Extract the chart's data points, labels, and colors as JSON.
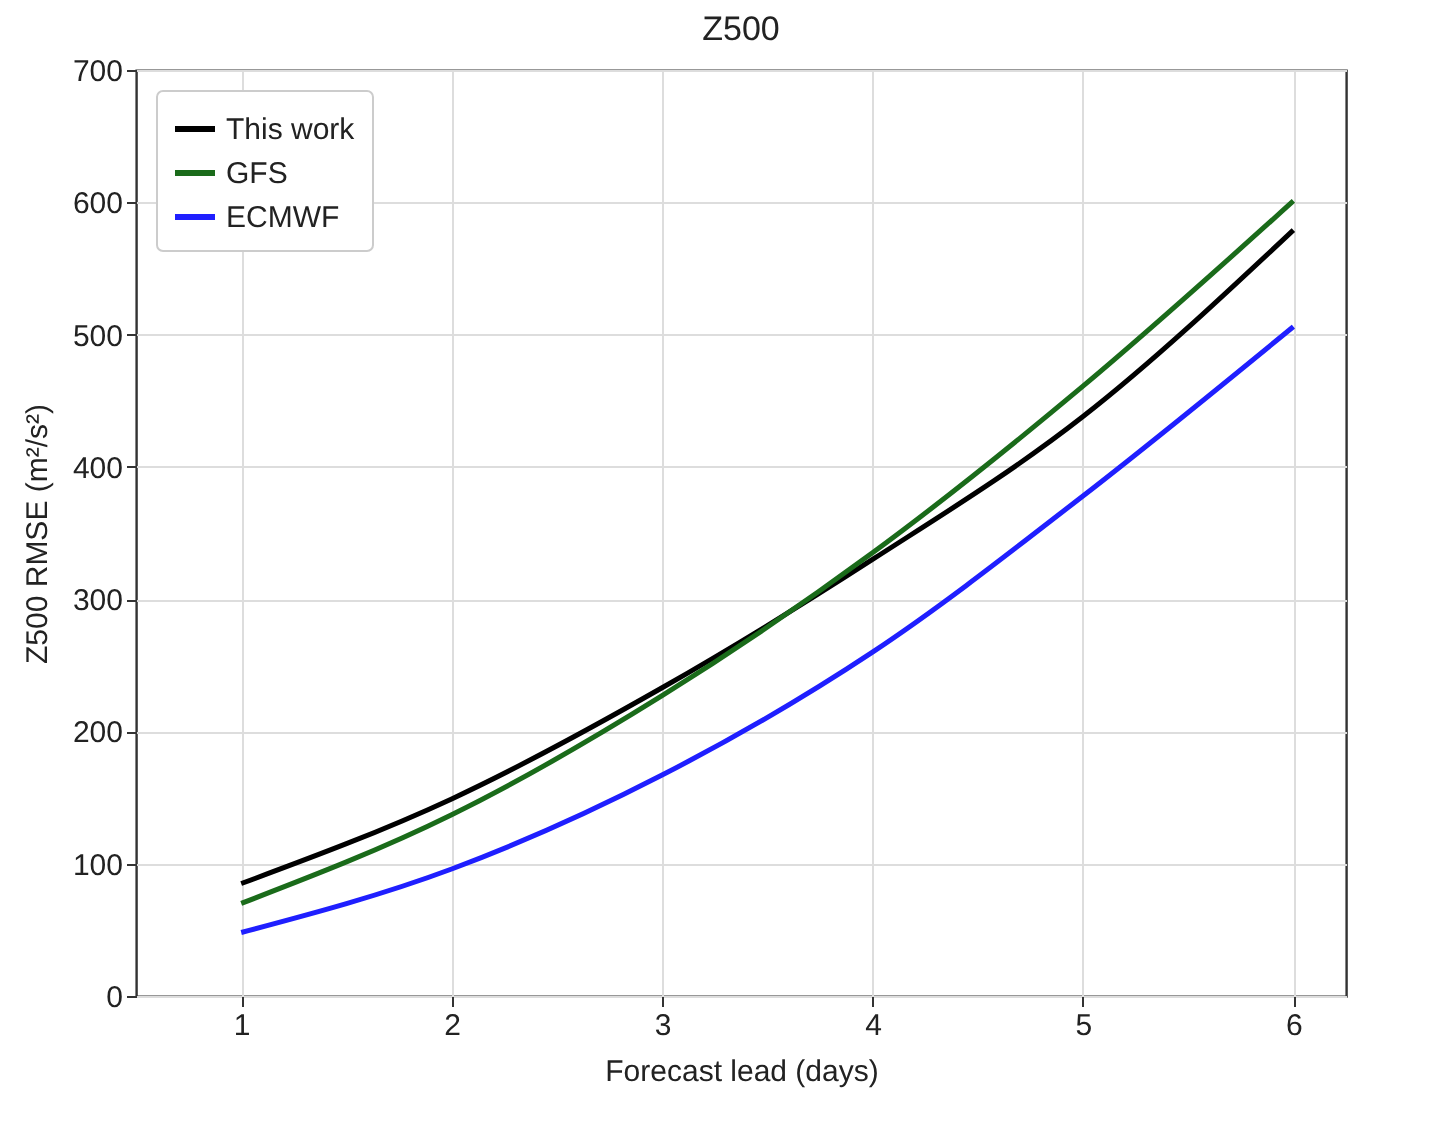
{
  "chart_data": {
    "type": "line",
    "title": "Z500",
    "xlabel": "Forecast lead (days)",
    "ylabel": "Z500 RMSE (m²/s²)",
    "x": [
      1,
      2,
      3,
      4,
      5,
      6
    ],
    "series": [
      {
        "name": "This work",
        "color": "#000000",
        "values": [
          85,
          149,
          233,
          330,
          438,
          579
        ]
      },
      {
        "name": "GFS",
        "color": "#1a6b1a",
        "values": [
          70,
          137,
          227,
          335,
          461,
          601
        ]
      },
      {
        "name": "ECMWF",
        "color": "#1f1fff",
        "values": [
          48,
          96,
          167,
          260,
          378,
          506
        ]
      }
    ],
    "xlim": [
      0.5,
      6.25
    ],
    "xticks": [
      1,
      2,
      3,
      4,
      5,
      6
    ],
    "ylim": [
      0,
      700
    ],
    "yticks": [
      0,
      100,
      200,
      300,
      400,
      500,
      600,
      700
    ],
    "grid": true,
    "legend": "top left",
    "line_style": "solid",
    "marker": "none"
  }
}
